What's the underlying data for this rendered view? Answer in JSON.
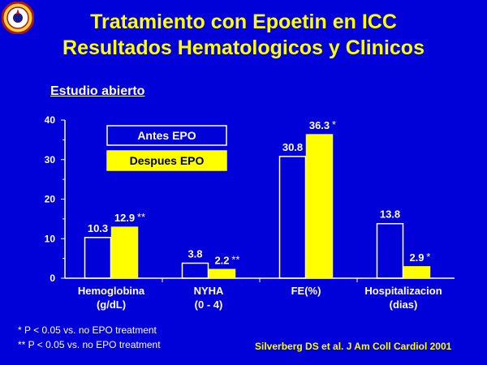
{
  "colors": {
    "background": "#0000d8",
    "title": "#ffff00",
    "antes": "#ffffff",
    "despues": "#ffff00"
  },
  "logo": "university-seal-icon",
  "title_line1": "Tratamiento con Epoetin en ICC",
  "title_line2": "Resultados Hematologicos y Clinicos",
  "subtitle": "Estudio abierto",
  "footnotes": [
    "*  P < 0.05 vs. no EPO treatment",
    "** P < 0.05 vs. no EPO treatment"
  ],
  "citation": "Silverberg DS et al. J Am Coll Cardiol 2001",
  "chart_data": {
    "type": "bar",
    "ylim": [
      0,
      40
    ],
    "yticks": [
      0,
      10,
      20,
      30,
      40
    ],
    "grid": false,
    "legend_position": "top-left",
    "categories": [
      [
        "Hemoglobina",
        "(g/dL)"
      ],
      [
        "NYHA",
        "(0 - 4)"
      ],
      [
        "FE(%)"
      ],
      [
        "Hospitalizacion",
        "(dias)"
      ]
    ],
    "series": [
      {
        "name": "Antes  EPO",
        "values": [
          10.3,
          3.8,
          30.8,
          13.8
        ],
        "labels": [
          "10.3",
          "3.8",
          "30.8",
          "13.8"
        ],
        "sig": [
          "",
          "",
          "",
          ""
        ]
      },
      {
        "name": "Despues EPO",
        "values": [
          12.9,
          2.2,
          36.3,
          2.9
        ],
        "labels": [
          "12.9",
          "2.2",
          "36.3",
          "2.9"
        ],
        "sig": [
          "**",
          "**",
          "*",
          "*"
        ]
      }
    ]
  }
}
